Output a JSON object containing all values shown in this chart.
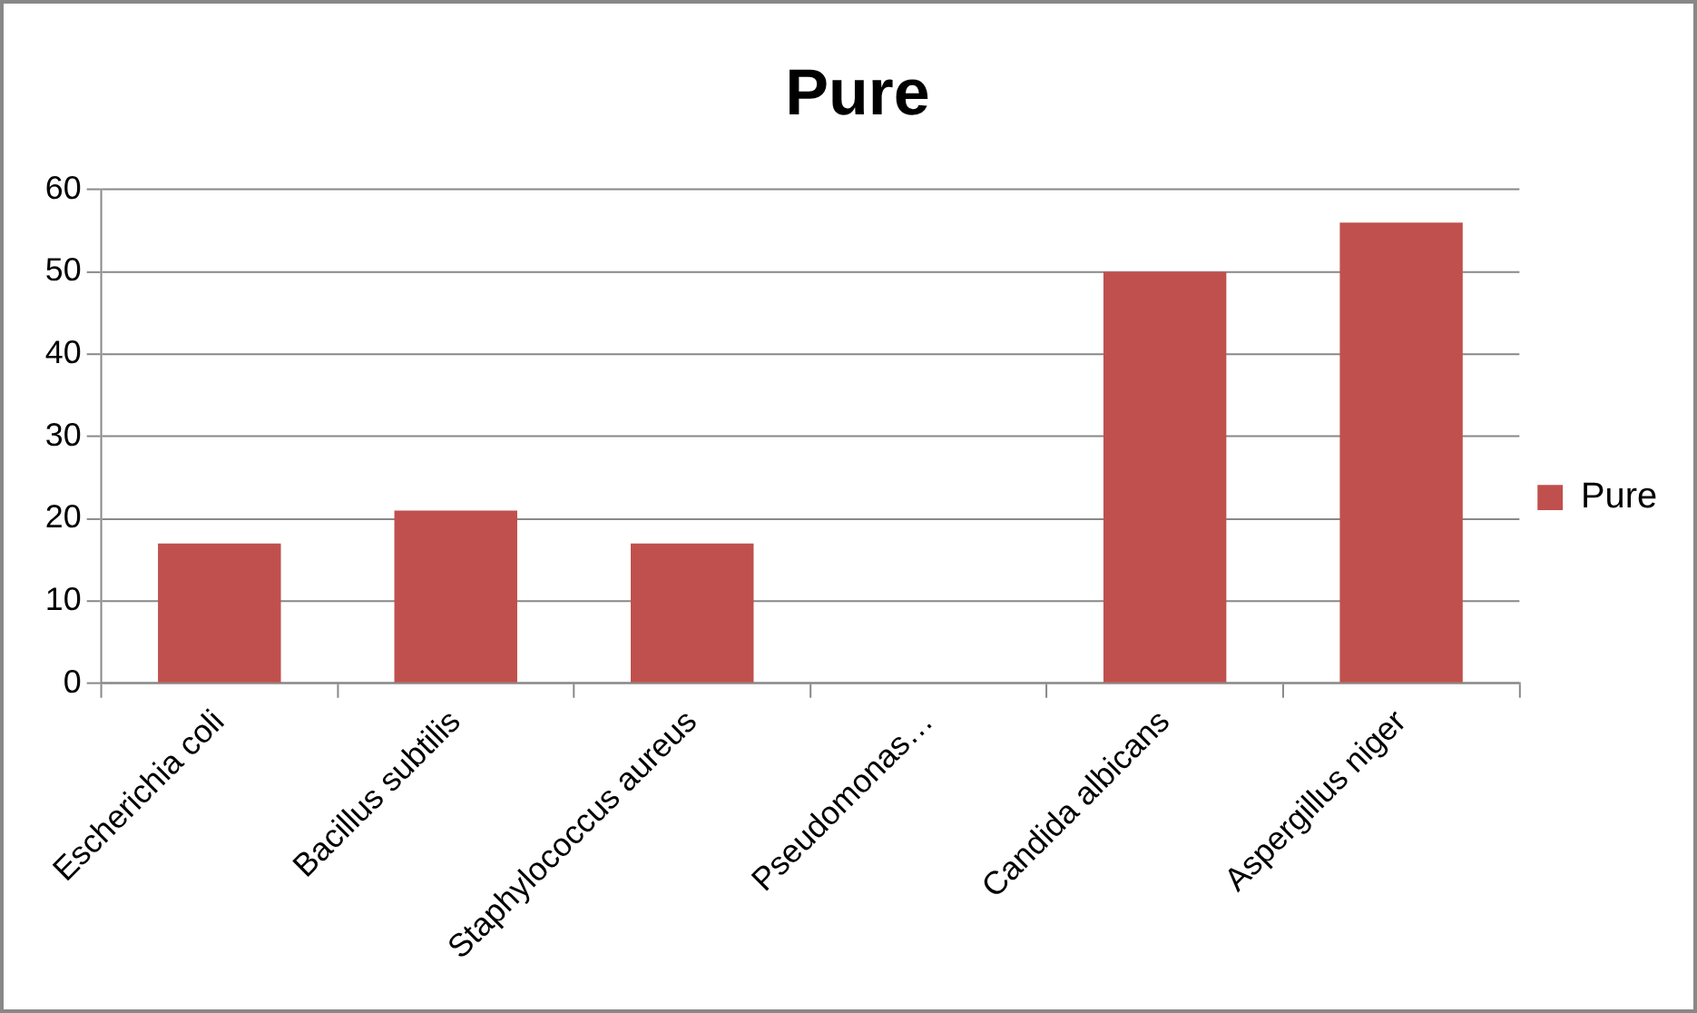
{
  "chart_data": {
    "type": "bar",
    "title": "Pure",
    "categories": [
      "Escherichia coli",
      "Bacillus subtilis",
      "Staphylococcus aureus",
      "Pseudomonas…",
      "Candida albicans",
      "Aspergillus niger"
    ],
    "series": [
      {
        "name": "Pure",
        "color": "#c0504d",
        "values": [
          17,
          21,
          17,
          0,
          50,
          56
        ]
      }
    ],
    "ylim": [
      0,
      60
    ],
    "yticks": [
      0,
      10,
      20,
      30,
      40,
      50,
      60
    ],
    "grid": "y",
    "legend": "right"
  }
}
